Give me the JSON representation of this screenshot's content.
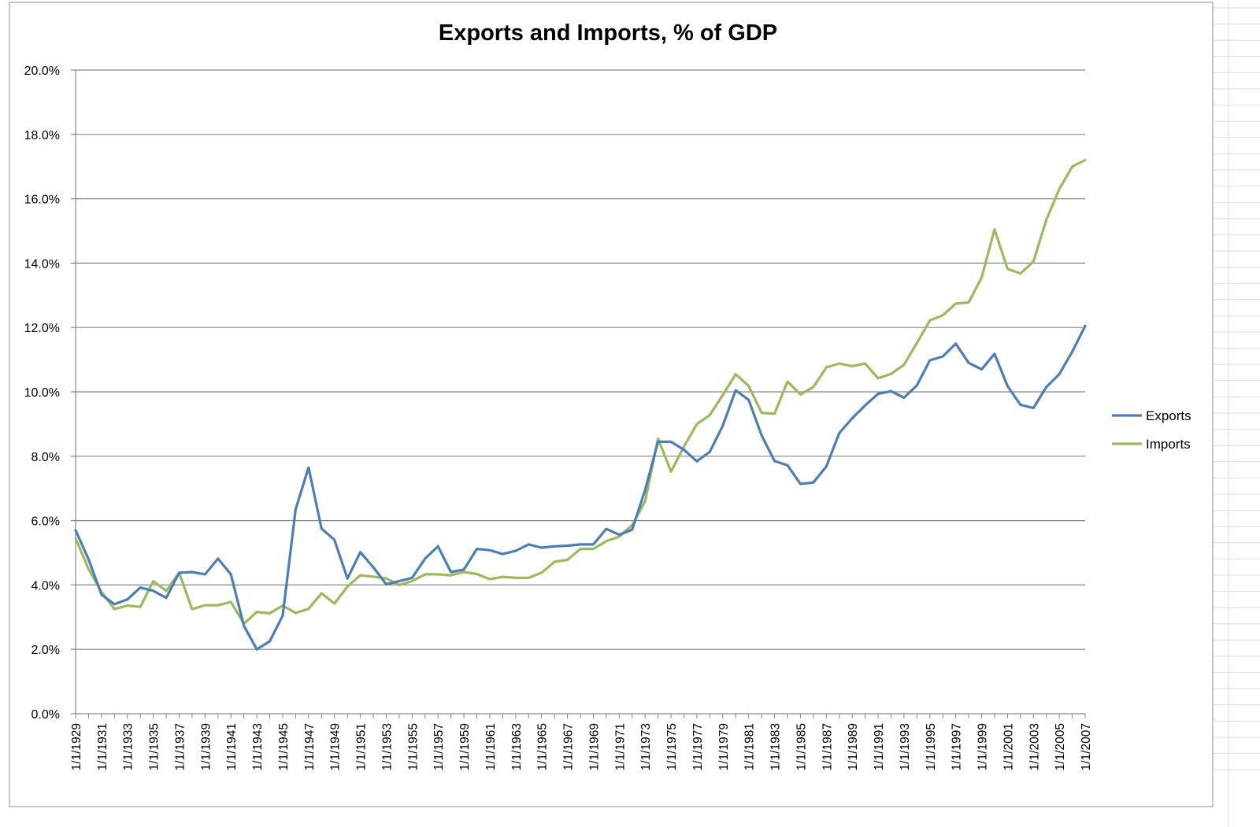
{
  "chart_data": {
    "type": "line",
    "title": "Exports and Imports, % of GDP",
    "xlabel": "",
    "ylabel": "",
    "ylim": [
      0,
      20
    ],
    "yticks": [
      "0.0%",
      "2.0%",
      "4.0%",
      "6.0%",
      "8.0%",
      "10.0%",
      "12.0%",
      "14.0%",
      "16.0%",
      "18.0%",
      "20.0%"
    ],
    "grid": true,
    "legend_position": "right",
    "x": [
      1929,
      1930,
      1931,
      1932,
      1933,
      1934,
      1935,
      1936,
      1937,
      1938,
      1939,
      1940,
      1941,
      1942,
      1943,
      1944,
      1945,
      1946,
      1947,
      1948,
      1949,
      1950,
      1951,
      1952,
      1953,
      1954,
      1955,
      1956,
      1957,
      1958,
      1959,
      1960,
      1961,
      1962,
      1963,
      1964,
      1965,
      1966,
      1967,
      1968,
      1969,
      1970,
      1971,
      1972,
      1973,
      1974,
      1975,
      1976,
      1977,
      1978,
      1979,
      1980,
      1981,
      1982,
      1983,
      1984,
      1985,
      1986,
      1987,
      1988,
      1989,
      1990,
      1991,
      1992,
      1993,
      1994,
      1995,
      1996,
      1997,
      1998,
      1999,
      2000,
      2001,
      2002,
      2003,
      2004,
      2005,
      2006,
      2007
    ],
    "xtick_labels": [
      "1/1/1929",
      "1/1/1931",
      "1/1/1933",
      "1/1/1935",
      "1/1/1937",
      "1/1/1939",
      "1/1/1941",
      "1/1/1943",
      "1/1/1945",
      "1/1/1947",
      "1/1/1949",
      "1/1/1951",
      "1/1/1953",
      "1/1/1955",
      "1/1/1957",
      "1/1/1959",
      "1/1/1961",
      "1/1/1963",
      "1/1/1965",
      "1/1/1967",
      "1/1/1969",
      "1/1/1971",
      "1/1/1973",
      "1/1/1975",
      "1/1/1977",
      "1/1/1979",
      "1/1/1981",
      "1/1/1983",
      "1/1/1985",
      "1/1/1987",
      "1/1/1989",
      "1/1/1991",
      "1/1/1993",
      "1/1/1995",
      "1/1/1997",
      "1/1/1999",
      "1/1/2001",
      "1/1/2003",
      "1/1/2005",
      "1/1/2007"
    ],
    "series": [
      {
        "name": "Exports",
        "color": "#4a7ebb",
        "values": [
          5.7,
          4.8,
          3.7,
          3.4,
          3.55,
          3.92,
          3.82,
          3.6,
          4.38,
          4.4,
          4.33,
          4.82,
          4.33,
          2.73,
          2.0,
          2.25,
          3.05,
          6.35,
          7.65,
          5.75,
          5.4,
          4.2,
          5.02,
          4.55,
          4.02,
          4.12,
          4.22,
          4.82,
          5.2,
          4.4,
          4.48,
          5.12,
          5.08,
          4.96,
          5.06,
          5.26,
          5.16,
          5.2,
          5.22,
          5.26,
          5.26,
          5.74,
          5.56,
          5.72,
          6.95,
          8.45,
          8.45,
          8.2,
          7.84,
          8.14,
          8.95,
          10.05,
          9.75,
          8.65,
          7.85,
          7.72,
          7.14,
          7.18,
          7.68,
          8.72,
          9.18,
          9.58,
          9.94,
          10.02,
          9.82,
          10.2,
          10.98,
          11.1,
          11.5,
          10.9,
          10.7,
          11.18,
          10.18,
          9.6,
          9.5,
          10.15,
          10.55,
          11.25,
          12.05
        ]
      },
      {
        "name": "Imports",
        "color": "#9bbb59",
        "values": [
          5.45,
          4.5,
          3.78,
          3.25,
          3.36,
          3.32,
          4.12,
          3.82,
          4.38,
          3.25,
          3.37,
          3.37,
          3.47,
          2.8,
          3.16,
          3.12,
          3.36,
          3.13,
          3.26,
          3.74,
          3.42,
          3.95,
          4.3,
          4.26,
          4.2,
          4.0,
          4.12,
          4.33,
          4.33,
          4.3,
          4.4,
          4.34,
          4.18,
          4.25,
          4.22,
          4.22,
          4.38,
          4.72,
          4.78,
          5.12,
          5.12,
          5.36,
          5.5,
          5.86,
          6.6,
          8.55,
          7.52,
          8.3,
          9.0,
          9.28,
          9.9,
          10.55,
          10.18,
          9.35,
          9.32,
          10.32,
          9.92,
          10.15,
          10.76,
          10.88,
          10.8,
          10.88,
          10.42,
          10.56,
          10.84,
          11.52,
          12.22,
          12.38,
          12.74,
          12.78,
          13.55,
          15.05,
          13.82,
          13.68,
          14.05,
          15.35,
          16.3,
          17.0,
          17.2
        ]
      }
    ]
  }
}
